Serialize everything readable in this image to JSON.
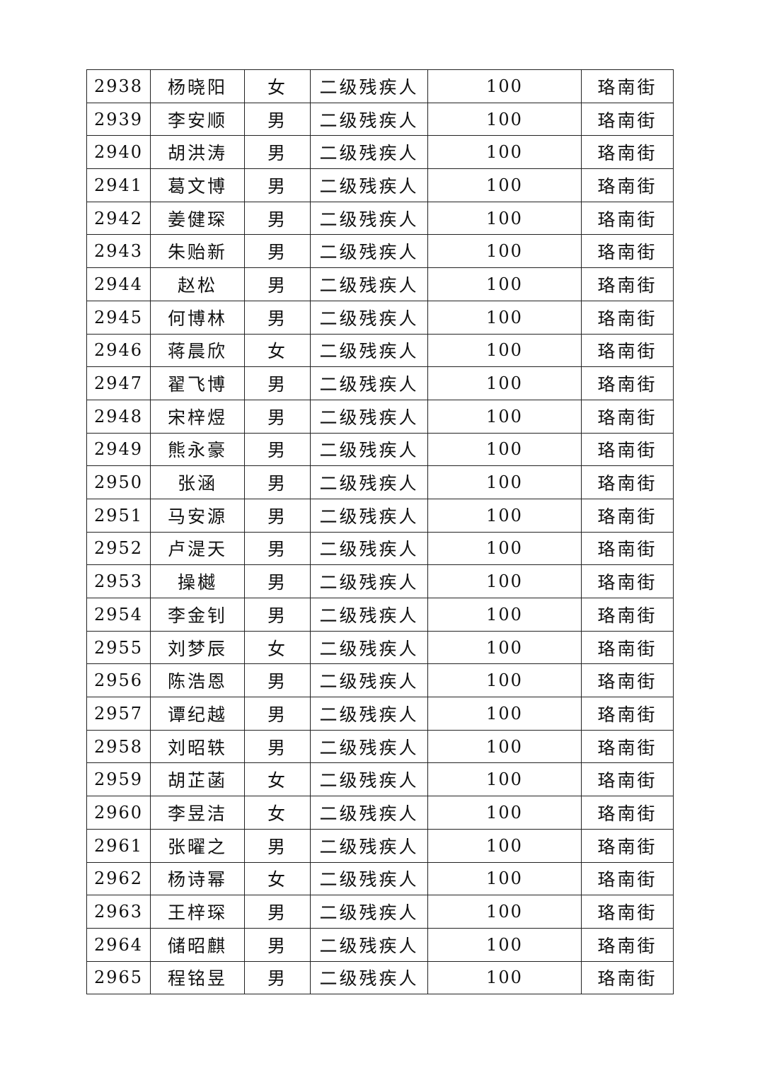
{
  "table": {
    "rows": [
      [
        "2938",
        "杨晓阳",
        "女",
        "二级残疾人",
        "100",
        "珞南街"
      ],
      [
        "2939",
        "李安顺",
        "男",
        "二级残疾人",
        "100",
        "珞南街"
      ],
      [
        "2940",
        "胡洪涛",
        "男",
        "二级残疾人",
        "100",
        "珞南街"
      ],
      [
        "2941",
        "葛文博",
        "男",
        "二级残疾人",
        "100",
        "珞南街"
      ],
      [
        "2942",
        "姜健琛",
        "男",
        "二级残疾人",
        "100",
        "珞南街"
      ],
      [
        "2943",
        "朱贻新",
        "男",
        "二级残疾人",
        "100",
        "珞南街"
      ],
      [
        "2944",
        "赵松",
        "男",
        "二级残疾人",
        "100",
        "珞南街"
      ],
      [
        "2945",
        "何博林",
        "男",
        "二级残疾人",
        "100",
        "珞南街"
      ],
      [
        "2946",
        "蒋晨欣",
        "女",
        "二级残疾人",
        "100",
        "珞南街"
      ],
      [
        "2947",
        "翟飞博",
        "男",
        "二级残疾人",
        "100",
        "珞南街"
      ],
      [
        "2948",
        "宋梓煜",
        "男",
        "二级残疾人",
        "100",
        "珞南街"
      ],
      [
        "2949",
        "熊永豪",
        "男",
        "二级残疾人",
        "100",
        "珞南街"
      ],
      [
        "2950",
        "张涵",
        "男",
        "二级残疾人",
        "100",
        "珞南街"
      ],
      [
        "2951",
        "马安源",
        "男",
        "二级残疾人",
        "100",
        "珞南街"
      ],
      [
        "2952",
        "卢湜天",
        "男",
        "二级残疾人",
        "100",
        "珞南街"
      ],
      [
        "2953",
        "操樾",
        "男",
        "二级残疾人",
        "100",
        "珞南街"
      ],
      [
        "2954",
        "李金钊",
        "男",
        "二级残疾人",
        "100",
        "珞南街"
      ],
      [
        "2955",
        "刘梦辰",
        "女",
        "二级残疾人",
        "100",
        "珞南街"
      ],
      [
        "2956",
        "陈浩恩",
        "男",
        "二级残疾人",
        "100",
        "珞南街"
      ],
      [
        "2957",
        "谭纪越",
        "男",
        "二级残疾人",
        "100",
        "珞南街"
      ],
      [
        "2958",
        "刘昭轶",
        "男",
        "二级残疾人",
        "100",
        "珞南街"
      ],
      [
        "2959",
        "胡芷菡",
        "女",
        "二级残疾人",
        "100",
        "珞南街"
      ],
      [
        "2960",
        "李昱洁",
        "女",
        "二级残疾人",
        "100",
        "珞南街"
      ],
      [
        "2961",
        "张曜之",
        "男",
        "二级残疾人",
        "100",
        "珞南街"
      ],
      [
        "2962",
        "杨诗幂",
        "女",
        "二级残疾人",
        "100",
        "珞南街"
      ],
      [
        "2963",
        "王梓琛",
        "男",
        "二级残疾人",
        "100",
        "珞南街"
      ],
      [
        "2964",
        "储昭麒",
        "男",
        "二级残疾人",
        "100",
        "珞南街"
      ],
      [
        "2965",
        "程铭昱",
        "男",
        "二级残疾人",
        "100",
        "珞南街"
      ]
    ]
  }
}
